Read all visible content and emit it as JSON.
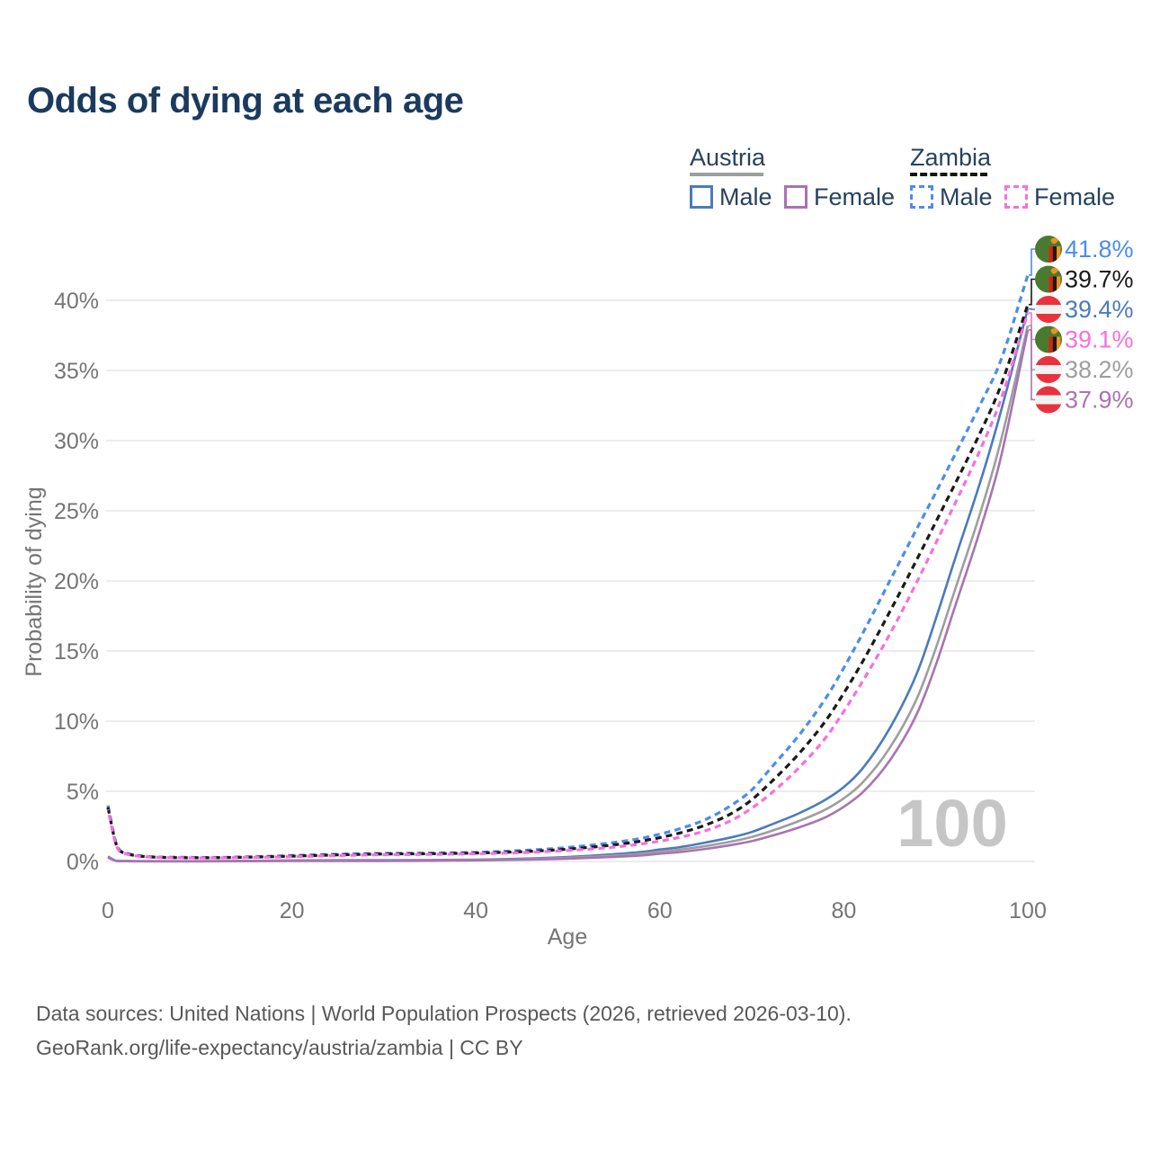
{
  "header": {
    "title": "Odds of dying at each age"
  },
  "legend": {
    "groups": [
      {
        "country": "Austria",
        "line_style": "solid",
        "underline_color": "#9E9E9E",
        "items": [
          {
            "label": "Male",
            "color": "#4A7BBD"
          },
          {
            "label": "Female",
            "color": "#A973B1"
          }
        ]
      },
      {
        "country": "Zambia",
        "line_style": "dashed",
        "underline_color": "#141414",
        "items": [
          {
            "label": "Male",
            "color": "#4B8DEA"
          },
          {
            "label": "Female",
            "color": "#F76FDE"
          }
        ]
      }
    ]
  },
  "footer": {
    "line1": "Data sources: United Nations | World Population Prospects (2026, retrieved 2026-03-10).",
    "line2": "GeoRank.org/life-expectancy/austria/zambia | CC BY"
  },
  "chart_data": {
    "type": "line",
    "title": "Odds of dying at each age",
    "xlabel": "Age",
    "ylabel": "Probability of dying",
    "xlim": [
      0,
      100
    ],
    "ylim_pct": [
      0,
      44
    ],
    "grid": true,
    "hover_age": "100",
    "x_tick_values": [
      0,
      20,
      40,
      60,
      80,
      100
    ],
    "x_tick_labels": [
      "0",
      "20",
      "40",
      "60",
      "80",
      "100"
    ],
    "y_tick_values": [
      0,
      5,
      10,
      15,
      20,
      25,
      30,
      35,
      40
    ],
    "y_tick_labels": [
      "0%",
      "5%",
      "10%",
      "15%",
      "20%",
      "25%",
      "30%",
      "35%",
      "40%"
    ],
    "ages": [
      0,
      1,
      2,
      3,
      5,
      8,
      10,
      15,
      20,
      25,
      30,
      35,
      40,
      45,
      50,
      55,
      58,
      60,
      62,
      65,
      68,
      70,
      72,
      75,
      78,
      80,
      82,
      85,
      88,
      90,
      92,
      95,
      97,
      100
    ],
    "series": [
      {
        "id": "austria-male",
        "country": "Austria",
        "sex": "male",
        "line": "solid",
        "color": "#4A7BBD",
        "flag": "austria",
        "end_label": "39.4%",
        "end_value_pct": 39.4,
        "values_pct": [
          0.35,
          0.04,
          0.03,
          0.02,
          0.02,
          0.02,
          0.02,
          0.04,
          0.08,
          0.09,
          0.09,
          0.1,
          0.13,
          0.2,
          0.32,
          0.52,
          0.68,
          0.85,
          1.0,
          1.35,
          1.75,
          2.1,
          2.6,
          3.4,
          4.4,
          5.3,
          6.6,
          9.5,
          13.5,
          17.3,
          21.4,
          27.4,
          31.9,
          39.4
        ]
      },
      {
        "id": "austria-all",
        "country": "Austria",
        "sex": "all",
        "line": "solid",
        "color": "#9E9E9E",
        "flag": "austria",
        "end_label": "38.2%",
        "end_value_pct": 38.2,
        "values_pct": [
          0.3,
          0.035,
          0.025,
          0.02,
          0.015,
          0.015,
          0.015,
          0.03,
          0.06,
          0.07,
          0.07,
          0.08,
          0.11,
          0.16,
          0.26,
          0.42,
          0.55,
          0.7,
          0.83,
          1.1,
          1.45,
          1.75,
          2.15,
          2.85,
          3.7,
          4.5,
          5.6,
          8.1,
          11.7,
          15.2,
          19.2,
          25.2,
          29.8,
          38.2
        ]
      },
      {
        "id": "austria-female",
        "country": "Austria",
        "sex": "female",
        "line": "solid",
        "color": "#A973B1",
        "flag": "austria",
        "end_label": "37.9%",
        "end_value_pct": 37.9,
        "values_pct": [
          0.28,
          0.03,
          0.02,
          0.015,
          0.012,
          0.012,
          0.012,
          0.02,
          0.03,
          0.035,
          0.04,
          0.05,
          0.08,
          0.12,
          0.2,
          0.33,
          0.43,
          0.55,
          0.66,
          0.9,
          1.2,
          1.45,
          1.8,
          2.4,
          3.15,
          3.9,
          4.9,
          7.2,
          10.6,
          14.0,
          18.0,
          24.0,
          28.6,
          37.9
        ]
      },
      {
        "id": "zambia-male",
        "country": "Zambia",
        "sex": "male",
        "line": "dashed",
        "color": "#4B8DEA",
        "flag": "zambia",
        "end_label": "41.8%",
        "end_value_pct": 41.8,
        "values_pct": [
          4.0,
          1.1,
          0.6,
          0.45,
          0.33,
          0.3,
          0.28,
          0.32,
          0.42,
          0.52,
          0.58,
          0.6,
          0.65,
          0.78,
          1.0,
          1.35,
          1.65,
          1.95,
          2.3,
          3.0,
          4.1,
          5.1,
          6.6,
          8.9,
          11.6,
          13.8,
          16.2,
          20.0,
          23.8,
          26.3,
          28.9,
          32.8,
          35.6,
          41.8
        ]
      },
      {
        "id": "zambia-all",
        "country": "Zambia",
        "sex": "all",
        "line": "dashed",
        "color": "#1A1A1A",
        "flag": "zambia",
        "end_label": "39.7%",
        "end_value_pct": 39.7,
        "values_pct": [
          3.85,
          1.05,
          0.57,
          0.42,
          0.31,
          0.27,
          0.26,
          0.3,
          0.38,
          0.47,
          0.53,
          0.55,
          0.6,
          0.7,
          0.88,
          1.18,
          1.45,
          1.7,
          2.0,
          2.6,
          3.5,
          4.4,
          5.6,
          7.6,
          10.0,
          12.0,
          14.2,
          17.8,
          21.6,
          24.2,
          26.8,
          30.8,
          33.8,
          39.7
        ]
      },
      {
        "id": "zambia-female",
        "country": "Zambia",
        "sex": "female",
        "line": "dashed",
        "color": "#F76FDE",
        "flag": "zambia",
        "end_label": "39.1%",
        "end_value_pct": 39.1,
        "values_pct": [
          3.7,
          1.0,
          0.54,
          0.4,
          0.3,
          0.26,
          0.25,
          0.28,
          0.34,
          0.42,
          0.48,
          0.5,
          0.55,
          0.63,
          0.78,
          1.02,
          1.25,
          1.45,
          1.7,
          2.2,
          3.0,
          3.8,
          4.8,
          6.6,
          8.8,
          10.7,
          12.8,
          16.2,
          20.0,
          22.7,
          25.4,
          29.6,
          32.8,
          39.1
        ]
      }
    ],
    "colors": {
      "title": "#1b3a5e",
      "axis_text": "#757575",
      "grid": "#ececec",
      "watermark": "#c6c6c6",
      "footer": "#58585a"
    }
  }
}
